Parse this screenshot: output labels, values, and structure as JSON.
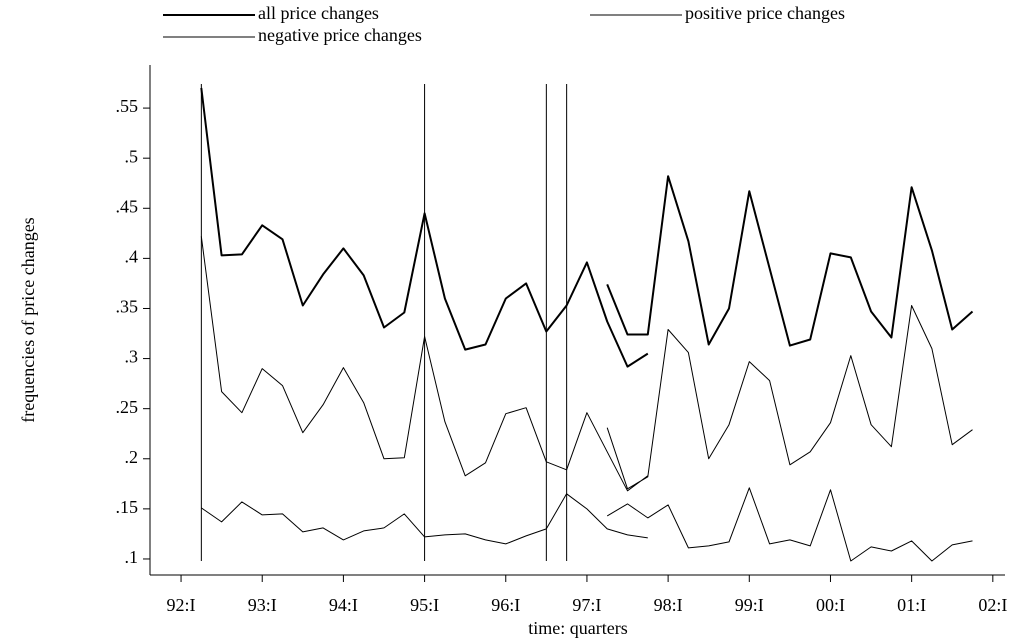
{
  "chart_data": {
    "type": "line",
    "y_label": "frequencies of price changes",
    "x_label": "time: quarters",
    "x": [
      1,
      2,
      3,
      4,
      5,
      6,
      7,
      8,
      9,
      10,
      11,
      12,
      13,
      14,
      15,
      16,
      17,
      18,
      19,
      20,
      21,
      22,
      23,
      null,
      21,
      22,
      23,
      24,
      25,
      26,
      27,
      28,
      29,
      30,
      31,
      32,
      33,
      34,
      35,
      36,
      37,
      38,
      39
    ],
    "series": [
      {
        "name": "all price changes",
        "color": "#000000",
        "line_width": 2,
        "values": [
          0.57,
          0.403,
          0.404,
          0.433,
          0.419,
          0.353,
          0.384,
          0.41,
          0.383,
          0.331,
          0.346,
          0.445,
          0.36,
          0.309,
          0.314,
          0.36,
          0.375,
          0.327,
          0.353,
          0.396,
          0.337,
          0.292,
          0.305,
          null,
          0.374,
          0.324,
          0.324,
          0.482,
          0.417,
          0.314,
          0.35,
          0.467,
          0.39,
          0.313,
          0.319,
          0.405,
          0.401,
          0.347,
          0.321,
          0.471,
          0.408,
          0.329,
          0.347
        ]
      },
      {
        "name": "positive price changes",
        "color": "#000000",
        "line_width": 1,
        "values": [
          0.422,
          0.267,
          0.246,
          0.29,
          0.273,
          0.226,
          0.254,
          0.291,
          0.256,
          0.2,
          0.201,
          0.322,
          0.237,
          0.183,
          0.196,
          0.245,
          0.251,
          0.197,
          0.189,
          0.246,
          0.207,
          0.168,
          0.183,
          null,
          0.231,
          0.17,
          0.182,
          0.329,
          0.306,
          0.2,
          0.234,
          0.297,
          0.278,
          0.194,
          0.207,
          0.236,
          0.303,
          0.234,
          0.212,
          0.353,
          0.31,
          0.214,
          0.229
        ]
      },
      {
        "name": "negative price changes",
        "color": "#000000",
        "line_width": 1,
        "values": [
          0.151,
          0.137,
          0.157,
          0.144,
          0.145,
          0.127,
          0.131,
          0.119,
          0.128,
          0.131,
          0.145,
          0.122,
          0.124,
          0.125,
          0.119,
          0.115,
          0.123,
          0.13,
          0.165,
          0.15,
          0.13,
          0.124,
          0.121,
          null,
          0.143,
          0.155,
          0.141,
          0.154,
          0.111,
          0.113,
          0.117,
          0.171,
          0.115,
          0.119,
          0.113,
          0.169,
          0.098,
          0.112,
          0.108,
          0.118,
          0.098,
          0.114,
          0.118
        ]
      }
    ],
    "vertical_lines": {
      "x": [
        1,
        12,
        18,
        19
      ],
      "y_range": [
        0.098,
        0.574
      ]
    },
    "xlim": [
      -1.53,
      40.6
    ],
    "xticks": [
      {
        "value": 0,
        "label": "92:I"
      },
      {
        "value": 4,
        "label": "93:I"
      },
      {
        "value": 8,
        "label": "94:I"
      },
      {
        "value": 12,
        "label": "95:I"
      },
      {
        "value": 16,
        "label": "96:I"
      },
      {
        "value": 20,
        "label": "97:I"
      },
      {
        "value": 24,
        "label": "98:I"
      },
      {
        "value": 28,
        "label": "99:I"
      },
      {
        "value": 32,
        "label": "00:I"
      },
      {
        "value": 36,
        "label": "01:I"
      },
      {
        "value": 40,
        "label": "02:I"
      }
    ],
    "ylim": [
      0.084,
      0.593
    ],
    "yticks": [
      {
        "value": 0.1,
        "label": ".1"
      },
      {
        "value": 0.15,
        "label": ".15"
      },
      {
        "value": 0.2,
        "label": ".2"
      },
      {
        "value": 0.25,
        "label": ".25"
      },
      {
        "value": 0.3,
        "label": ".3"
      },
      {
        "value": 0.35,
        "label": ".35"
      },
      {
        "value": 0.4,
        "label": ".4"
      },
      {
        "value": 0.45,
        "label": ".45"
      },
      {
        "value": 0.5,
        "label": ".5"
      },
      {
        "value": 0.55,
        "label": ".55"
      }
    ],
    "grid": false
  }
}
